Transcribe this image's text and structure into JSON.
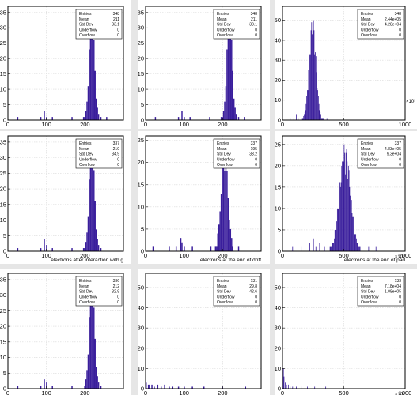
{
  "chart_data": [
    {
      "type": "bar",
      "xlim": [
        0,
        300
      ],
      "ylim": [
        0,
        37
      ],
      "xticks": [
        "0",
        "100",
        "200"
      ],
      "yticks": [
        "0",
        "5",
        "10",
        "15",
        "20",
        "25",
        "30",
        "35"
      ],
      "stats": [
        [
          "Entries",
          "348"
        ],
        [
          "Mean",
          "211"
        ],
        [
          "Std Dev",
          "33.1"
        ],
        [
          "Underflow",
          "0"
        ],
        [
          "Overflow",
          "0"
        ]
      ],
      "xlabel": "",
      "exponent": "",
      "peaks": [
        {
          "center": 218,
          "sigma": 7,
          "amp": 36
        }
      ],
      "minor": [
        [
          25,
          1
        ],
        [
          85,
          1
        ],
        [
          95,
          3
        ],
        [
          100,
          1
        ],
        [
          115,
          1
        ],
        [
          165,
          1
        ],
        [
          195,
          1
        ],
        [
          240,
          1
        ],
        [
          255,
          1
        ]
      ]
    },
    {
      "type": "bar",
      "xlim": [
        0,
        300
      ],
      "ylim": [
        0,
        37
      ],
      "xticks": [
        "0",
        "100",
        "200"
      ],
      "yticks": [
        "0",
        "5",
        "10",
        "15",
        "20",
        "25",
        "30",
        "35"
      ],
      "stats": [
        [
          "Entries",
          "348"
        ],
        [
          "Mean",
          "211"
        ],
        [
          "Std Dev",
          "33.1"
        ],
        [
          "Underflow",
          "0"
        ],
        [
          "Overflow",
          "0"
        ]
      ],
      "xlabel": "",
      "exponent": "",
      "peaks": [
        {
          "center": 218,
          "sigma": 7,
          "amp": 36
        }
      ],
      "minor": [
        [
          25,
          1
        ],
        [
          85,
          1
        ],
        [
          95,
          3
        ],
        [
          100,
          1
        ],
        [
          115,
          1
        ],
        [
          165,
          1
        ],
        [
          195,
          1
        ],
        [
          240,
          1
        ],
        [
          255,
          1
        ]
      ]
    },
    {
      "type": "bar",
      "xlim": [
        0,
        1000
      ],
      "ylim": [
        0,
        57
      ],
      "xticks": [
        "0",
        "500",
        "1000"
      ],
      "yticks": [
        "0",
        "10",
        "20",
        "30",
        "40",
        "50"
      ],
      "stats": [
        [
          "Entries",
          "348"
        ],
        [
          "Mean",
          "2.44e+05"
        ],
        [
          "Std Dev",
          "4.28e+04"
        ],
        [
          "Underflow",
          "0"
        ],
        [
          "Overflow",
          "0"
        ]
      ],
      "xlabel": "",
      "exponent": "×10³",
      "peaks": [
        {
          "center": 245,
          "sigma": 28,
          "amp": 52
        }
      ],
      "minor": [
        [
          60,
          1
        ],
        [
          90,
          1
        ],
        [
          110,
          3
        ],
        [
          125,
          1
        ],
        [
          150,
          1
        ],
        [
          330,
          1
        ],
        [
          360,
          1
        ]
      ]
    },
    {
      "type": "bar",
      "xlim": [
        0,
        300
      ],
      "ylim": [
        0,
        37
      ],
      "xticks": [
        "0",
        "100",
        "200"
      ],
      "yticks": [
        "0",
        "5",
        "10",
        "15",
        "20",
        "25",
        "30",
        "35"
      ],
      "stats": [
        [
          "Entries",
          "337"
        ],
        [
          "Mean",
          "210"
        ],
        [
          "Std Dev",
          "34.9"
        ],
        [
          "Underflow",
          "0"
        ],
        [
          "Overflow",
          "0"
        ]
      ],
      "xlabel": "electrons after interaction with g",
      "exponent": "",
      "peaks": [
        {
          "center": 218,
          "sigma": 7,
          "amp": 36
        }
      ],
      "minor": [
        [
          25,
          1
        ],
        [
          85,
          1
        ],
        [
          95,
          4
        ],
        [
          100,
          2
        ],
        [
          115,
          1
        ],
        [
          165,
          1
        ],
        [
          195,
          1
        ],
        [
          240,
          1
        ]
      ]
    },
    {
      "type": "bar",
      "xlim": [
        0,
        300
      ],
      "ylim": [
        0,
        26
      ],
      "xticks": [
        "0",
        "100",
        "200"
      ],
      "yticks": [
        "0",
        "5",
        "10",
        "15",
        "20",
        "25"
      ],
      "stats": [
        [
          "Entries",
          "337"
        ],
        [
          "Mean",
          "195"
        ],
        [
          "Std Dev",
          "33.2"
        ],
        [
          "Underflow",
          "0"
        ],
        [
          "Overflow",
          "0"
        ]
      ],
      "xlabel": "electrons at the end of drift",
      "exponent": "",
      "peaks": [
        {
          "center": 205,
          "sigma": 9,
          "amp": 24
        }
      ],
      "minor": [
        [
          20,
          1
        ],
        [
          60,
          1
        ],
        [
          80,
          1
        ],
        [
          90,
          3
        ],
        [
          95,
          2
        ],
        [
          100,
          1
        ],
        [
          120,
          1
        ],
        [
          170,
          1
        ],
        [
          240,
          1
        ]
      ]
    },
    {
      "type": "bar",
      "xlim": [
        0,
        1000
      ],
      "ylim": [
        0,
        27
      ],
      "xticks": [
        "0",
        "500",
        "1000"
      ],
      "yticks": [
        "0",
        "5",
        "10",
        "15",
        "20",
        "25"
      ],
      "stats": [
        [
          "Entries",
          "337"
        ],
        [
          "Mean",
          "4.83e+05"
        ],
        [
          "Std Dev",
          "9.3e+04"
        ],
        [
          "Underflow",
          "0"
        ],
        [
          "Overflow",
          "0"
        ]
      ],
      "xlabel": "electrons at the end of pad",
      "exponent": "×10³",
      "peaks": [
        {
          "center": 510,
          "sigma": 45,
          "amp": 25
        }
      ],
      "minor": [
        [
          80,
          1
        ],
        [
          150,
          1
        ],
        [
          220,
          2
        ],
        [
          250,
          3
        ],
        [
          270,
          1
        ],
        [
          300,
          2
        ],
        [
          340,
          1
        ],
        [
          700,
          1
        ],
        [
          760,
          1
        ]
      ]
    },
    {
      "type": "bar",
      "xlim": [
        0,
        300
      ],
      "ylim": [
        0,
        37
      ],
      "xticks": [
        "0",
        "100",
        "200"
      ],
      "yticks": [
        "0",
        "5",
        "10",
        "15",
        "20",
        "25",
        "30",
        "35"
      ],
      "stats": [
        [
          "Entries",
          "336"
        ],
        [
          "Mean",
          "212"
        ],
        [
          "Std Dev",
          "32.9"
        ],
        [
          "Underflow",
          "0"
        ],
        [
          "Overflow",
          "0"
        ]
      ],
      "xlabel": "",
      "exponent": "",
      "peaks": [
        {
          "center": 218,
          "sigma": 7,
          "amp": 36
        }
      ],
      "minor": [
        [
          25,
          1
        ],
        [
          85,
          1
        ],
        [
          95,
          3
        ],
        [
          100,
          2
        ],
        [
          115,
          1
        ],
        [
          165,
          1
        ],
        [
          240,
          1
        ]
      ]
    },
    {
      "type": "bar",
      "xlim": [
        0,
        300
      ],
      "ylim": [
        0,
        57
      ],
      "xticks": [
        "0",
        "100",
        "200"
      ],
      "yticks": [
        "0",
        "10",
        "20",
        "30",
        "40",
        "50"
      ],
      "stats": [
        [
          "Entries",
          "131"
        ],
        [
          "Mean",
          "29.8"
        ],
        [
          "Std Dev",
          "42.6"
        ],
        [
          "Underflow",
          "0"
        ],
        [
          "Overflow",
          "0"
        ]
      ],
      "xlabel": "",
      "exponent": "",
      "peaks": [],
      "minor": [
        [
          2,
          3
        ],
        [
          6,
          2
        ],
        [
          10,
          2
        ],
        [
          16,
          2
        ],
        [
          22,
          1
        ],
        [
          30,
          2
        ],
        [
          40,
          1
        ],
        [
          48,
          2
        ],
        [
          60,
          1
        ],
        [
          70,
          1
        ],
        [
          85,
          1
        ],
        [
          100,
          1
        ],
        [
          120,
          1
        ],
        [
          150,
          1
        ],
        [
          200,
          1
        ],
        [
          260,
          1
        ]
      ]
    },
    {
      "type": "bar",
      "xlim": [
        0,
        1000
      ],
      "ylim": [
        0,
        57
      ],
      "xticks": [
        "0",
        "500",
        "1000"
      ],
      "yticks": [
        "0",
        "10",
        "20",
        "30",
        "40",
        "50"
      ],
      "stats": [
        [
          "Entries",
          "133"
        ],
        [
          "Mean",
          "7.18e+04"
        ],
        [
          "Std Dev",
          "1.08e+05"
        ],
        [
          "Underflow",
          "0"
        ],
        [
          "Overflow",
          "0"
        ]
      ],
      "xlabel": "",
      "exponent": "×10³",
      "peaks": [],
      "minor": [
        [
          5,
          10
        ],
        [
          12,
          6
        ],
        [
          20,
          3
        ],
        [
          30,
          2
        ],
        [
          45,
          2
        ],
        [
          60,
          1
        ],
        [
          80,
          1
        ],
        [
          110,
          1
        ],
        [
          150,
          1
        ],
        [
          200,
          1
        ],
        [
          260,
          1
        ],
        [
          350,
          1
        ]
      ]
    }
  ]
}
